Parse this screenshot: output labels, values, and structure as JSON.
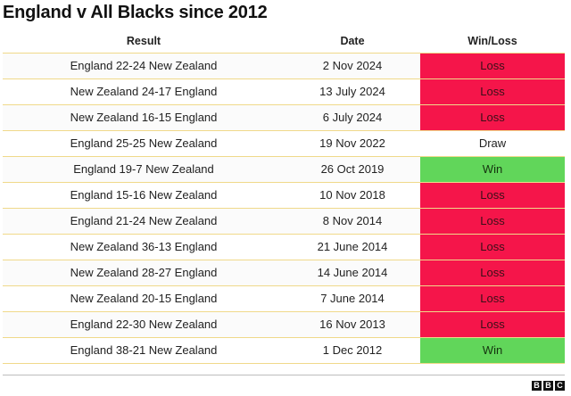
{
  "title": "England v All Blacks since 2012",
  "columns": {
    "result": "Result",
    "date": "Date",
    "outcome": "Win/Loss"
  },
  "rows": [
    {
      "result": "England 22-24 New Zealand",
      "date": "2 Nov 2024",
      "outcome": "Loss"
    },
    {
      "result": "New Zealand 24-17 England",
      "date": "13 July 2024",
      "outcome": "Loss"
    },
    {
      "result": "New Zealand 16-15 England",
      "date": "6 July 2024",
      "outcome": "Loss"
    },
    {
      "result": "England 25-25 New Zealand",
      "date": "19 Nov 2022",
      "outcome": "Draw"
    },
    {
      "result": "England 19-7 New Zealand",
      "date": "26 Oct 2019",
      "outcome": "Win"
    },
    {
      "result": "England 15-16 New Zealand",
      "date": "10 Nov 2018",
      "outcome": "Loss"
    },
    {
      "result": "England 21-24 New Zealand",
      "date": "8 Nov 2014",
      "outcome": "Loss"
    },
    {
      "result": "New Zealand 36-13 England",
      "date": "21 June 2014",
      "outcome": "Loss"
    },
    {
      "result": "New Zealand 28-27 England",
      "date": "14 June 2014",
      "outcome": "Loss"
    },
    {
      "result": "New Zealand 20-15 England",
      "date": "7 June 2014",
      "outcome": "Loss"
    },
    {
      "result": "England 22-30 New Zealand",
      "date": "16 Nov 2013",
      "outcome": "Loss"
    },
    {
      "result": "England 38-21 New Zealand",
      "date": "1 Dec 2012",
      "outcome": "Win"
    }
  ],
  "colors": {
    "loss": "#f5154a",
    "win": "#61d65a",
    "row_border": "#f0d98a"
  },
  "logo": {
    "letters": [
      "B",
      "B",
      "C"
    ]
  }
}
